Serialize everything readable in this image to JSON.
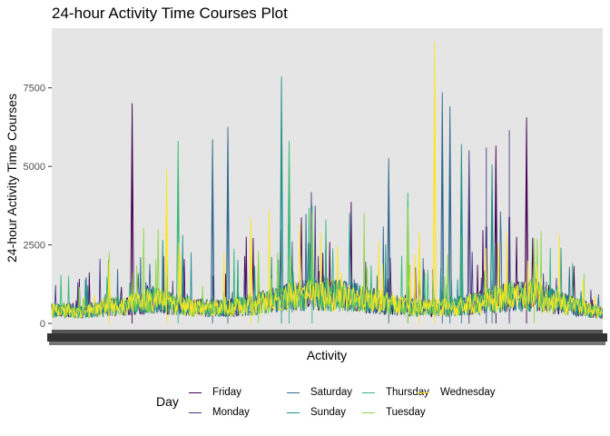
{
  "chart_data": {
    "type": "line",
    "title": "24-hour Activity Time Courses Plot",
    "xlabel": "Activity",
    "ylabel": "24-hour Activity Time Courses",
    "ylim": [
      -200,
      9400
    ],
    "yticks": [
      0,
      2500,
      5000,
      7500
    ],
    "ytick_labels": [
      "0",
      "2500",
      "5000",
      "7500"
    ],
    "x_count": 1440,
    "x_ticks_overlapping": true,
    "grid": false,
    "panel_background": "#e5e5e5",
    "legend": {
      "title": "Day",
      "placement": "bottom",
      "ncol": 4
    },
    "series": [
      {
        "name": "Friday",
        "color": "#440154",
        "peaks": [
          [
            210,
            7000
          ],
          [
            1240,
            6550
          ],
          [
            1160,
            5650
          ]
        ]
      },
      {
        "name": "Monday",
        "color": "#443a83",
        "peaks": [
          [
            1195,
            6150
          ],
          [
            1090,
            5500
          ],
          [
            1135,
            5600
          ]
        ]
      },
      {
        "name": "Saturday",
        "color": "#31688e",
        "peaks": [
          [
            1020,
            7350
          ],
          [
            1040,
            6900
          ],
          [
            460,
            6250
          ],
          [
            420,
            5850
          ],
          [
            880,
            5250
          ]
        ]
      },
      {
        "name": "Sunday",
        "color": "#21908d",
        "peaks": [
          [
            600,
            7850
          ],
          [
            1070,
            5700
          ],
          [
            1150,
            5050
          ]
        ]
      },
      {
        "name": "Thursday",
        "color": "#35b779",
        "peaks": [
          [
            620,
            5800
          ],
          [
            330,
            5800
          ],
          [
            930,
            4150
          ],
          [
            680,
            3750
          ]
        ]
      },
      {
        "name": "Tuesday",
        "color": "#8fd744",
        "peaks": [
          [
            1260,
            2700
          ],
          [
            540,
            2300
          ],
          [
            930,
            3700
          ]
        ]
      },
      {
        "name": "Wednesday",
        "color": "#fde725",
        "peaks": [
          [
            1000,
            8950
          ],
          [
            300,
            4900
          ],
          [
            150,
            2000
          ],
          [
            520,
            3350
          ],
          [
            960,
            2900
          ]
        ]
      }
    ]
  }
}
